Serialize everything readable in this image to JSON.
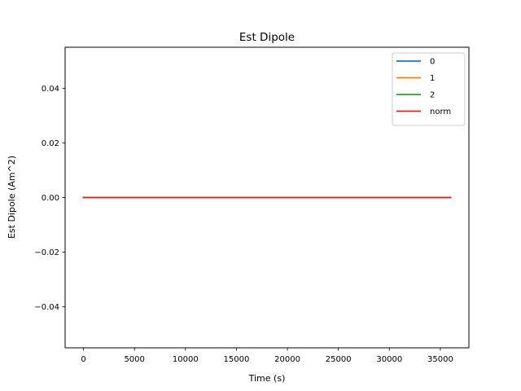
{
  "chart_data": {
    "type": "line",
    "title": "Est Dipole",
    "xlabel": "Time (s)",
    "ylabel": "Est Dipole (Am^2)",
    "xlim": [
      -1800,
      37800
    ],
    "ylim": [
      -0.055,
      0.055
    ],
    "xticks": [
      0,
      5000,
      10000,
      15000,
      20000,
      25000,
      30000,
      35000
    ],
    "xtick_labels": [
      "0",
      "5000",
      "10000",
      "15000",
      "20000",
      "25000",
      "30000",
      "35000"
    ],
    "yticks": [
      -0.04,
      -0.02,
      0.0,
      0.02,
      0.04
    ],
    "ytick_labels": [
      "−0.04",
      "−0.02",
      "0.00",
      "0.02",
      "0.04"
    ],
    "grid": false,
    "legend_position": "top-right",
    "series": [
      {
        "name": "0",
        "color": "#1f77b4",
        "x": [
          0,
          36000
        ],
        "y": [
          0,
          0
        ]
      },
      {
        "name": "1",
        "color": "#ff7f0e",
        "x": [
          0,
          36000
        ],
        "y": [
          0,
          0
        ]
      },
      {
        "name": "2",
        "color": "#2ca02c",
        "x": [
          0,
          36000
        ],
        "y": [
          0,
          0
        ]
      },
      {
        "name": "norm",
        "color": "#d62728",
        "x": [
          0,
          36000
        ],
        "y": [
          0,
          0
        ]
      }
    ]
  }
}
